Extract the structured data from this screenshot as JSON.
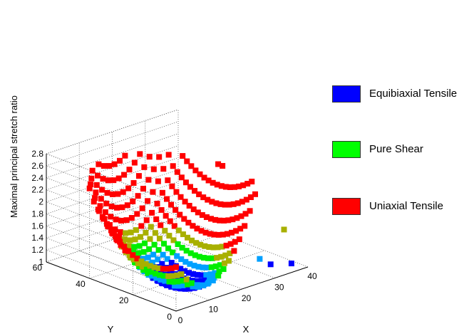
{
  "chart_data": {
    "type": "scatter",
    "ylabel": "Maximal principal stretch ratio",
    "xlabel": "X",
    "zlabel": "Y",
    "x_ticks": [
      "0",
      "10",
      "20",
      "30",
      "40"
    ],
    "y_ticks": [
      "0",
      "20",
      "40",
      "60"
    ],
    "z_ticks": [
      "1",
      "1.2",
      "1.4",
      "1.6",
      "1.8",
      "2",
      "2.2",
      "2.4",
      "2.6",
      "2.8"
    ],
    "xlim": [
      0,
      40
    ],
    "ylim": [
      0,
      60
    ],
    "zlim": [
      1,
      2.8
    ],
    "grid": true,
    "legend_position": "right",
    "series": [
      {
        "name": "Equibiaxial Tensile",
        "color": "#0000ff"
      },
      {
        "name": "Pure Shear",
        "color": "#00ff00"
      },
      {
        "name": "Uniaxial Tensile",
        "color": "#ff0000"
      }
    ]
  }
}
